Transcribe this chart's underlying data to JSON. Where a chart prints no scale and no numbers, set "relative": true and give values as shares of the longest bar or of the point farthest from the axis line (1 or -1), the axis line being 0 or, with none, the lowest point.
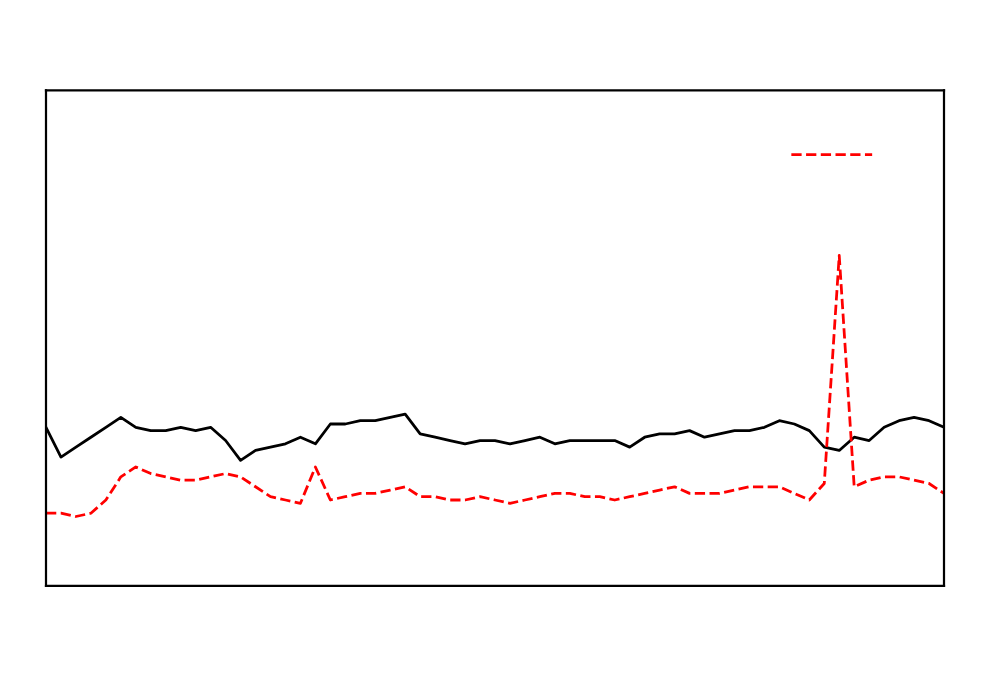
{
  "chart_data": {
    "type": "line",
    "relative": true,
    "grid": false,
    "categories": [
      null,
      null,
      null,
      null,
      null,
      null,
      null,
      null,
      null,
      null,
      null,
      null,
      null,
      null,
      null,
      null,
      null,
      null,
      null,
      null,
      null,
      null,
      null,
      null,
      null,
      null,
      null,
      null,
      null,
      null,
      null,
      null,
      null,
      null,
      null,
      null,
      null,
      null,
      null,
      null,
      null,
      null,
      null,
      null,
      null,
      null,
      null,
      null,
      null,
      null,
      null,
      null,
      null,
      null,
      null,
      null,
      null,
      null,
      null,
      null,
      null
    ],
    "series": [
      {
        "color": "#000000",
        "line_style": "solid",
        "values": [
          0.48,
          0.39,
          0.42,
          0.45,
          0.48,
          0.51,
          0.48,
          0.47,
          0.47,
          0.48,
          0.47,
          0.48,
          0.44,
          0.38,
          0.41,
          0.42,
          0.43,
          0.45,
          0.43,
          0.49,
          0.49,
          0.5,
          0.5,
          0.51,
          0.52,
          0.46,
          0.45,
          0.44,
          0.43,
          0.44,
          0.44,
          0.43,
          0.44,
          0.45,
          0.43,
          0.44,
          0.44,
          0.44,
          0.44,
          0.42,
          0.45,
          0.46,
          0.46,
          0.47,
          0.45,
          0.46,
          0.47,
          0.47,
          0.48,
          0.5,
          0.49,
          0.47,
          0.42,
          0.41,
          0.45,
          0.44,
          0.48,
          0.5,
          0.51,
          0.5,
          0.48
        ]
      },
      {
        "color": "#ff0000",
        "line_style": "dashed",
        "values": [
          0.22,
          0.22,
          0.21,
          0.22,
          0.26,
          0.33,
          0.36,
          0.34,
          0.33,
          0.32,
          0.32,
          0.33,
          0.34,
          0.33,
          0.3,
          0.27,
          0.26,
          0.25,
          0.36,
          0.26,
          0.27,
          0.28,
          0.28,
          0.29,
          0.3,
          0.27,
          0.27,
          0.26,
          0.26,
          0.27,
          0.26,
          0.25,
          0.26,
          0.27,
          0.28,
          0.28,
          0.27,
          0.27,
          0.26,
          0.27,
          0.28,
          0.29,
          0.3,
          0.28,
          0.28,
          0.28,
          0.29,
          0.3,
          0.3,
          0.3,
          0.28,
          0.26,
          0.31,
          1.0,
          0.3,
          0.32,
          0.33,
          0.33,
          0.32,
          0.31,
          0.28
        ]
      }
    ]
  }
}
